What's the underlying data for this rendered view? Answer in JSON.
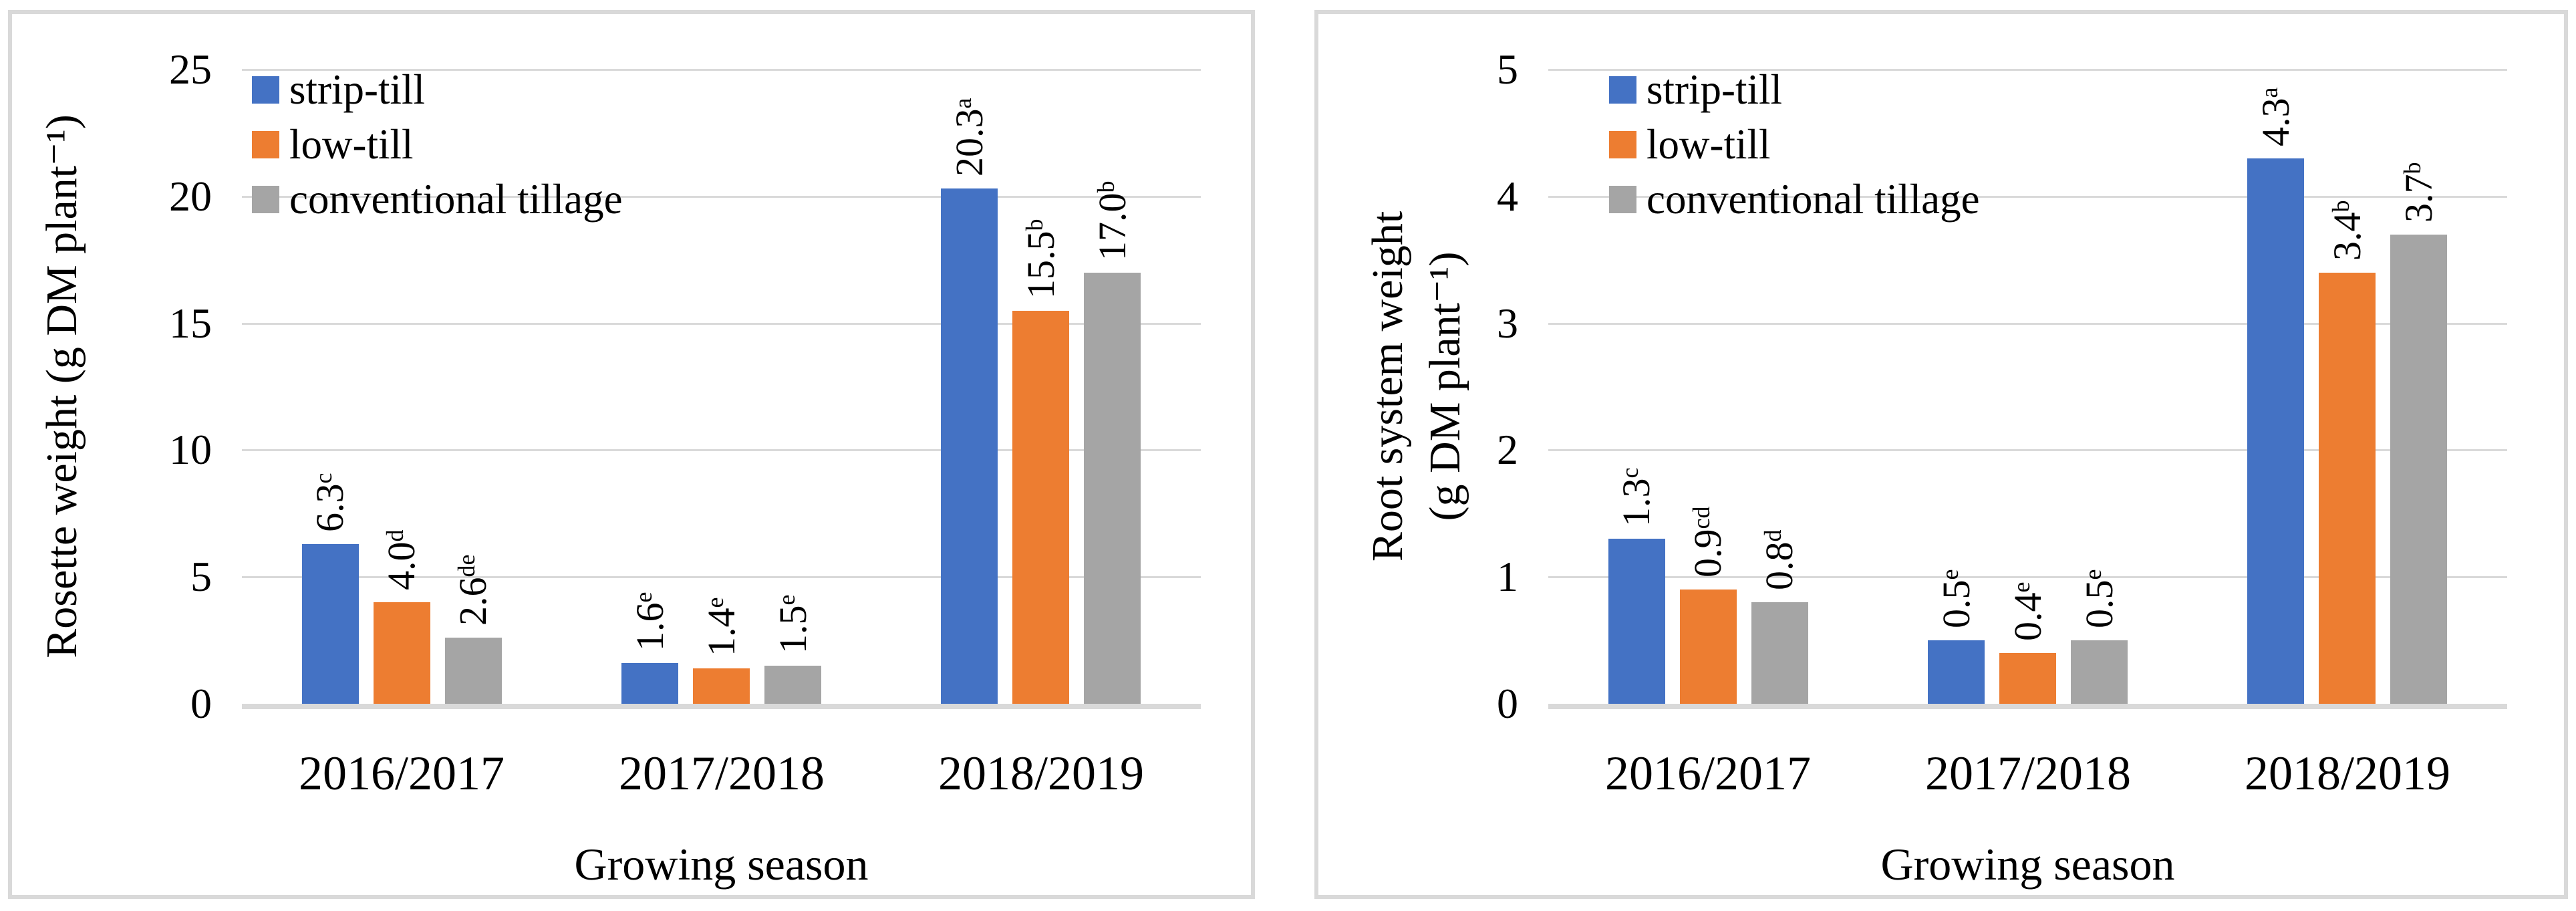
{
  "chart_data": [
    {
      "type": "bar",
      "panel": "left",
      "y_title_lines": [
        "Rosette weight (g DM plant⁻¹)"
      ],
      "xlabel": "Growing season",
      "categories": [
        "2016/2017",
        "2017/2018",
        "2018/2019"
      ],
      "ylim": [
        0,
        25
      ],
      "y_step": 5,
      "y_ticks": [
        "0",
        "5",
        "10",
        "15",
        "20",
        "25"
      ],
      "grid": true,
      "legend_position": "top-left-inside",
      "series": [
        {
          "name": "strip-till",
          "color": "#4472C4",
          "values": [
            6.3,
            1.6,
            20.3
          ],
          "labels": [
            {
              "text": "6.3",
              "sup": "c"
            },
            {
              "text": "1.6",
              "sup": "e"
            },
            {
              "text": "20.3",
              "sup": "a"
            }
          ]
        },
        {
          "name": "low-till",
          "color": "#ED7D31",
          "values": [
            4.0,
            1.4,
            15.5
          ],
          "labels": [
            {
              "text": "4.0",
              "sup": "d"
            },
            {
              "text": "1.4",
              "sup": "e"
            },
            {
              "text": "15.5",
              "sup": "b"
            }
          ]
        },
        {
          "name": "conventional tillage",
          "color": "#A5A5A5",
          "values": [
            2.6,
            1.5,
            17.0
          ],
          "labels": [
            {
              "text": "2.6",
              "sup": "de"
            },
            {
              "text": "1.5",
              "sup": "e"
            },
            {
              "text": "17.0",
              "sup": "b"
            }
          ]
        }
      ]
    },
    {
      "type": "bar",
      "panel": "right",
      "y_title_lines": [
        "Root system weight",
        "(g DM plant⁻¹)"
      ],
      "xlabel": "Growing season",
      "categories": [
        "2016/2017",
        "2017/2018",
        "2018/2019"
      ],
      "ylim": [
        0,
        5
      ],
      "y_step": 1,
      "y_ticks": [
        "0",
        "1",
        "2",
        "3",
        "4",
        "5"
      ],
      "grid": true,
      "legend_position": "top-left-inside",
      "series": [
        {
          "name": "strip-till",
          "color": "#4472C4",
          "values": [
            1.3,
            0.5,
            4.3
          ],
          "labels": [
            {
              "text": "1.3",
              "sup": "c"
            },
            {
              "text": "0.5",
              "sup": "e"
            },
            {
              "text": "4.3",
              "sup": "a"
            }
          ]
        },
        {
          "name": "low-till",
          "color": "#ED7D31",
          "values": [
            0.9,
            0.4,
            3.4
          ],
          "labels": [
            {
              "text": "0.9",
              "sup": "cd"
            },
            {
              "text": "0.4",
              "sup": "e"
            },
            {
              "text": "3.4",
              "sup": "b"
            }
          ]
        },
        {
          "name": "conventional tillage",
          "color": "#A5A5A5",
          "values": [
            0.8,
            0.5,
            3.7
          ],
          "labels": [
            {
              "text": "0.8",
              "sup": "d"
            },
            {
              "text": "0.5",
              "sup": "e"
            },
            {
              "text": "3.7",
              "sup": "b"
            }
          ]
        }
      ]
    }
  ],
  "colors": {
    "series_blue": "#4472C4",
    "series_orange": "#ED7D31",
    "series_gray": "#A5A5A5",
    "gridline": "#d9d9d9",
    "frame": "#d9d9d9",
    "text": "#000000"
  }
}
